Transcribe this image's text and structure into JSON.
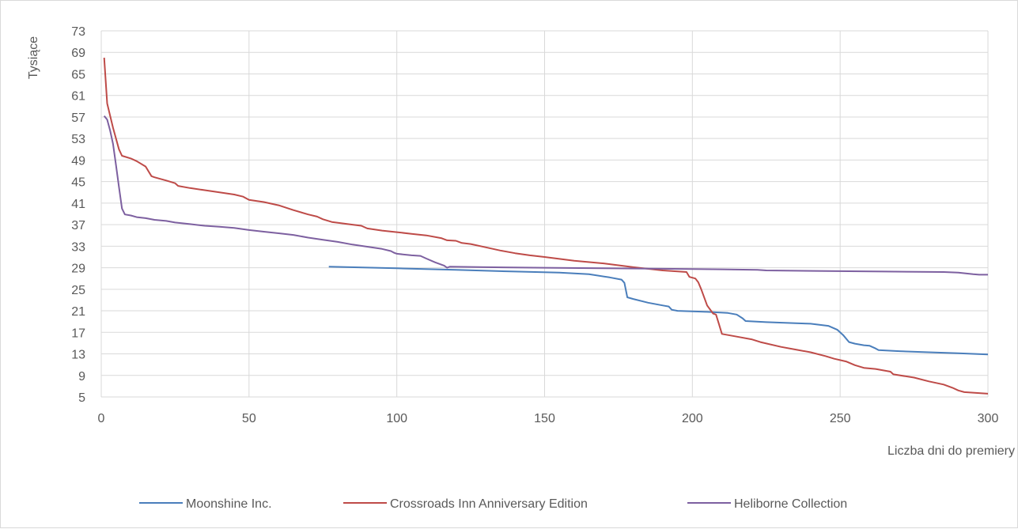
{
  "chart_data": {
    "type": "line",
    "title": "",
    "xlabel": "Liczba dni do premiery",
    "ylabel": "Tysiące",
    "xlim": [
      0,
      300
    ],
    "ylim": [
      5,
      73
    ],
    "x_ticks": [
      0,
      50,
      100,
      150,
      200,
      250,
      300
    ],
    "y_ticks": [
      5,
      9,
      13,
      17,
      21,
      25,
      29,
      33,
      37,
      41,
      45,
      49,
      53,
      57,
      61,
      65,
      69,
      73
    ],
    "grid": "on",
    "legend_position": "bottom",
    "series": [
      {
        "name": "Moonshine Inc.",
        "color": "#4a7ebb",
        "points": [
          [
            77,
            29.2
          ],
          [
            100,
            28.9
          ],
          [
            120,
            28.6
          ],
          [
            140,
            28.3
          ],
          [
            155,
            28.1
          ],
          [
            165,
            27.8
          ],
          [
            172,
            27.2
          ],
          [
            176,
            26.8
          ],
          [
            177,
            26.2
          ],
          [
            178,
            23.5
          ],
          [
            180,
            23.2
          ],
          [
            185,
            22.5
          ],
          [
            190,
            22.0
          ],
          [
            192,
            21.8
          ],
          [
            193,
            21.2
          ],
          [
            195,
            21.0
          ],
          [
            205,
            20.8
          ],
          [
            212,
            20.6
          ],
          [
            215,
            20.3
          ],
          [
            217,
            19.6
          ],
          [
            218,
            19.1
          ],
          [
            225,
            18.9
          ],
          [
            235,
            18.7
          ],
          [
            240,
            18.6
          ],
          [
            246,
            18.2
          ],
          [
            249,
            17.5
          ],
          [
            251,
            16.5
          ],
          [
            253,
            15.2
          ],
          [
            255,
            14.9
          ],
          [
            258,
            14.6
          ],
          [
            260,
            14.5
          ],
          [
            262,
            14.0
          ],
          [
            263,
            13.7
          ],
          [
            270,
            13.5
          ],
          [
            280,
            13.3
          ],
          [
            290,
            13.1
          ],
          [
            300,
            12.9
          ]
        ]
      },
      {
        "name": "Crossroads Inn Anniversary Edition",
        "color": "#be4b48",
        "points": [
          [
            1,
            68
          ],
          [
            2,
            59.5
          ],
          [
            4,
            55
          ],
          [
            6,
            51
          ],
          [
            7,
            49.8
          ],
          [
            10,
            49.3
          ],
          [
            12,
            48.8
          ],
          [
            15,
            47.8
          ],
          [
            17,
            46.0
          ],
          [
            18,
            45.8
          ],
          [
            22,
            45.2
          ],
          [
            25,
            44.7
          ],
          [
            26,
            44.2
          ],
          [
            30,
            43.8
          ],
          [
            35,
            43.4
          ],
          [
            40,
            43.0
          ],
          [
            45,
            42.6
          ],
          [
            48,
            42.2
          ],
          [
            50,
            41.6
          ],
          [
            55,
            41.2
          ],
          [
            60,
            40.6
          ],
          [
            65,
            39.7
          ],
          [
            70,
            38.9
          ],
          [
            73,
            38.5
          ],
          [
            75,
            38.0
          ],
          [
            78,
            37.5
          ],
          [
            85,
            37.0
          ],
          [
            88,
            36.8
          ],
          [
            90,
            36.3
          ],
          [
            95,
            35.9
          ],
          [
            100,
            35.6
          ],
          [
            105,
            35.3
          ],
          [
            110,
            35.0
          ],
          [
            115,
            34.5
          ],
          [
            117,
            34.1
          ],
          [
            120,
            34.0
          ],
          [
            122,
            33.6
          ],
          [
            125,
            33.4
          ],
          [
            130,
            32.8
          ],
          [
            135,
            32.2
          ],
          [
            140,
            31.7
          ],
          [
            145,
            31.3
          ],
          [
            150,
            31.0
          ],
          [
            160,
            30.3
          ],
          [
            170,
            29.8
          ],
          [
            180,
            29.1
          ],
          [
            190,
            28.5
          ],
          [
            198,
            28.2
          ],
          [
            199,
            27.3
          ],
          [
            201,
            27.0
          ],
          [
            202,
            26.3
          ],
          [
            203,
            25.0
          ],
          [
            205,
            22.0
          ],
          [
            207,
            20.5
          ],
          [
            208,
            20.3
          ],
          [
            209,
            18.5
          ],
          [
            210,
            16.7
          ],
          [
            215,
            16.2
          ],
          [
            220,
            15.7
          ],
          [
            223,
            15.2
          ],
          [
            230,
            14.3
          ],
          [
            235,
            13.8
          ],
          [
            240,
            13.3
          ],
          [
            245,
            12.6
          ],
          [
            248,
            12.1
          ],
          [
            252,
            11.6
          ],
          [
            255,
            10.9
          ],
          [
            258,
            10.4
          ],
          [
            262,
            10.2
          ],
          [
            267,
            9.7
          ],
          [
            268,
            9.2
          ],
          [
            275,
            8.6
          ],
          [
            280,
            7.9
          ],
          [
            285,
            7.3
          ],
          [
            288,
            6.7
          ],
          [
            290,
            6.2
          ],
          [
            292,
            5.9
          ],
          [
            295,
            5.8
          ],
          [
            300,
            5.6
          ]
        ]
      },
      {
        "name": "Heliborne Collection",
        "color": "#7d60a0",
        "points": [
          [
            1,
            57.2
          ],
          [
            2,
            56.5
          ],
          [
            3,
            54.5
          ],
          [
            4,
            52
          ],
          [
            5,
            48
          ],
          [
            6,
            44
          ],
          [
            7,
            40
          ],
          [
            8,
            38.9
          ],
          [
            10,
            38.7
          ],
          [
            12,
            38.4
          ],
          [
            15,
            38.2
          ],
          [
            18,
            37.9
          ],
          [
            22,
            37.7
          ],
          [
            25,
            37.4
          ],
          [
            30,
            37.1
          ],
          [
            35,
            36.8
          ],
          [
            40,
            36.6
          ],
          [
            45,
            36.4
          ],
          [
            50,
            36.0
          ],
          [
            55,
            35.7
          ],
          [
            60,
            35.4
          ],
          [
            65,
            35.1
          ],
          [
            70,
            34.6
          ],
          [
            75,
            34.2
          ],
          [
            80,
            33.8
          ],
          [
            85,
            33.3
          ],
          [
            90,
            32.9
          ],
          [
            95,
            32.5
          ],
          [
            98,
            32.1
          ],
          [
            99,
            31.8
          ],
          [
            100,
            31.6
          ],
          [
            105,
            31.3
          ],
          [
            108,
            31.2
          ],
          [
            110,
            30.7
          ],
          [
            113,
            30.0
          ],
          [
            116,
            29.4
          ],
          [
            117,
            29.0
          ],
          [
            118,
            29.2
          ],
          [
            130,
            29.1
          ],
          [
            150,
            29.0
          ],
          [
            170,
            28.9
          ],
          [
            190,
            28.8
          ],
          [
            210,
            28.7
          ],
          [
            222,
            28.6
          ],
          [
            225,
            28.5
          ],
          [
            245,
            28.4
          ],
          [
            265,
            28.3
          ],
          [
            285,
            28.2
          ],
          [
            290,
            28.1
          ],
          [
            295,
            27.8
          ],
          [
            297,
            27.7
          ],
          [
            300,
            27.7
          ]
        ]
      }
    ]
  }
}
